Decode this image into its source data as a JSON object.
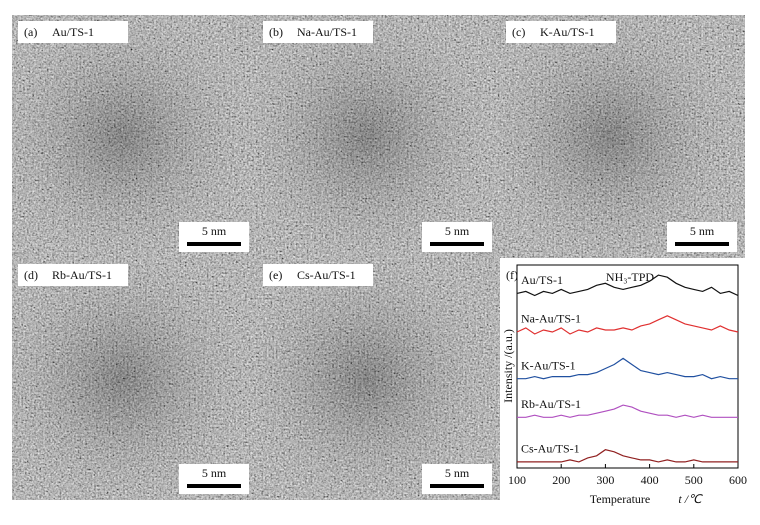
{
  "panels": [
    {
      "letter": "(a)",
      "label": "Au/TS-1",
      "scale_bar": "5 nm"
    },
    {
      "letter": "(b)",
      "label": "Na-Au/TS-1",
      "scale_bar": "5 nm"
    },
    {
      "letter": "(c)",
      "label": "K-Au/TS-1",
      "scale_bar": "5 nm"
    },
    {
      "letter": "(d)",
      "label": "Rb-Au/TS-1",
      "scale_bar": "5 nm"
    },
    {
      "letter": "(e)",
      "label": "Cs-Au/TS-1",
      "scale_bar": "5 nm"
    }
  ],
  "chart_data": {
    "type": "line",
    "letter": "(f)",
    "annotation": "NH₃-TPD",
    "y_label": "Intensity /(a.u.)",
    "x_label": "Temperature",
    "x_variable": "t /℃",
    "x": [
      100,
      120,
      140,
      160,
      180,
      200,
      220,
      240,
      260,
      280,
      300,
      320,
      340,
      360,
      380,
      400,
      420,
      440,
      460,
      480,
      500,
      520,
      540,
      560,
      580,
      600
    ],
    "xlim": [
      100,
      600
    ],
    "xticks": [
      100,
      200,
      300,
      400,
      500,
      600
    ],
    "ylim": [
      0,
      10
    ],
    "series": [
      {
        "name": "Au/TS-1",
        "color": "#111111",
        "values": [
          8.6,
          8.7,
          8.5,
          8.7,
          8.6,
          8.8,
          8.6,
          8.7,
          8.8,
          9.0,
          9.1,
          8.9,
          8.8,
          8.9,
          9.0,
          9.2,
          9.5,
          9.4,
          9.1,
          8.9,
          8.8,
          8.7,
          8.9,
          8.6,
          8.7,
          8.5
        ]
      },
      {
        "name": "Na-Au/TS-1",
        "color": "#e03030",
        "values": [
          6.7,
          6.9,
          6.6,
          6.8,
          6.7,
          6.9,
          6.6,
          6.8,
          6.7,
          6.9,
          6.8,
          6.8,
          6.9,
          6.8,
          7.0,
          7.1,
          7.3,
          7.5,
          7.3,
          7.1,
          7.0,
          6.9,
          6.8,
          7.0,
          6.8,
          6.7
        ]
      },
      {
        "name": "K-Au/TS-1",
        "color": "#2050a0",
        "values": [
          4.4,
          4.4,
          4.5,
          4.4,
          4.5,
          4.5,
          4.5,
          4.6,
          4.6,
          4.7,
          4.9,
          5.1,
          5.4,
          5.1,
          4.8,
          4.7,
          4.6,
          4.7,
          4.6,
          4.5,
          4.5,
          4.6,
          4.4,
          4.5,
          4.4,
          4.4
        ]
      },
      {
        "name": "Rb-Au/TS-1",
        "color": "#b050c0",
        "values": [
          2.5,
          2.5,
          2.6,
          2.5,
          2.5,
          2.6,
          2.5,
          2.6,
          2.6,
          2.7,
          2.8,
          2.9,
          3.1,
          3.0,
          2.8,
          2.7,
          2.6,
          2.6,
          2.5,
          2.6,
          2.5,
          2.6,
          2.5,
          2.5,
          2.5,
          2.5
        ]
      },
      {
        "name": "Cs-Au/TS-1",
        "color": "#902020",
        "values": [
          0.3,
          0.3,
          0.3,
          0.3,
          0.3,
          0.3,
          0.4,
          0.3,
          0.5,
          0.6,
          0.9,
          0.8,
          0.6,
          0.5,
          0.4,
          0.4,
          0.3,
          0.4,
          0.3,
          0.3,
          0.4,
          0.3,
          0.3,
          0.3,
          0.3,
          0.3
        ]
      }
    ]
  }
}
